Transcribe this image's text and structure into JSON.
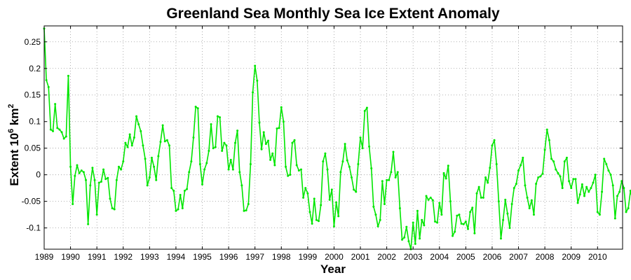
{
  "chart_data": {
    "type": "line",
    "title": "Greenland Sea Monthly Sea Ice Extent Anomaly",
    "xlabel": "Year",
    "ylabel_base": "Extent 10",
    "ylabel_exp1": "6",
    "ylabel_mid": " km",
    "ylabel_exp2": "2",
    "xlim": [
      1989,
      2010.95
    ],
    "ylim": [
      -0.14,
      0.28
    ],
    "grid": true,
    "line_color": "#00e600",
    "xticks": [
      1989,
      1990,
      1991,
      1992,
      1993,
      1994,
      1995,
      1996,
      1997,
      1998,
      1999,
      2000,
      2001,
      2002,
      2003,
      2004,
      2005,
      2006,
      2007,
      2008,
      2009,
      2010
    ],
    "yticks": [
      -0.1,
      -0.05,
      0,
      0.05,
      0.1,
      0.15,
      0.2,
      0.25
    ],
    "ytick_labels": [
      "-0.1",
      "-0.05",
      "0",
      "0.05",
      "0.1",
      "0.15",
      "0.2",
      "0.25"
    ],
    "series": [
      {
        "start_year": 1989,
        "step_months": 1,
        "values": [
          0.275,
          0.178,
          0.165,
          0.085,
          0.082,
          0.133,
          0.088,
          0.085,
          0.08,
          0.068,
          0.072,
          0.186,
          0.015,
          -0.055,
          -0.002,
          0.018,
          0.003,
          0.008,
          0.005,
          -0.01,
          -0.093,
          -0.02,
          0.013,
          -0.01,
          -0.075,
          -0.015,
          -0.013,
          0.01,
          -0.008,
          -0.006,
          -0.045,
          -0.063,
          -0.065,
          -0.01,
          0.015,
          0.01,
          0.025,
          0.06,
          0.052,
          0.076,
          0.055,
          0.07,
          0.11,
          0.095,
          0.082,
          0.055,
          0.03,
          -0.02,
          -0.005,
          0.032,
          0.015,
          -0.01,
          0.035,
          0.062,
          0.093,
          0.063,
          0.065,
          0.055,
          -0.025,
          -0.03,
          -0.068,
          -0.065,
          -0.038,
          -0.063,
          -0.03,
          -0.027,
          0.005,
          0.025,
          0.07,
          0.128,
          0.125,
          0.02,
          -0.018,
          0.01,
          0.022,
          0.045,
          0.095,
          0.05,
          0.052,
          0.11,
          0.108,
          0.045,
          0.06,
          0.055,
          0.01,
          0.028,
          0.01,
          0.06,
          0.083,
          0.005,
          -0.02,
          -0.068,
          -0.067,
          -0.055,
          0.02,
          0.155,
          0.205,
          0.177,
          0.098,
          0.048,
          0.08,
          0.058,
          0.064,
          0.028,
          0.04,
          0.018,
          0.087,
          0.088,
          0.127,
          0.1,
          0.015,
          -0.002,
          0.0,
          0.06,
          0.065,
          0.018,
          0.008,
          0.01,
          -0.043,
          -0.025,
          -0.035,
          -0.07,
          -0.092,
          -0.045,
          -0.085,
          -0.087,
          -0.057,
          0.025,
          0.04,
          0.01,
          -0.047,
          -0.028,
          -0.097,
          -0.052,
          -0.078,
          0.005,
          0.025,
          0.058,
          0.027,
          0.015,
          -0.005,
          -0.028,
          -0.032,
          0.02,
          0.07,
          0.05,
          0.12,
          0.126,
          0.053,
          0.012,
          -0.06,
          -0.075,
          -0.097,
          -0.085,
          -0.012,
          -0.055,
          -0.01,
          -0.01,
          0.005,
          0.043,
          -0.005,
          0.005,
          -0.063,
          -0.122,
          -0.118,
          -0.098,
          -0.125,
          -0.14,
          -0.09,
          -0.13,
          -0.068,
          -0.12,
          -0.085,
          -0.095,
          -0.04,
          -0.047,
          -0.043,
          -0.048,
          -0.088,
          -0.09,
          -0.053,
          -0.075,
          0.003,
          -0.007,
          0.017,
          -0.05,
          -0.115,
          -0.107,
          -0.077,
          -0.075,
          -0.092,
          -0.093,
          -0.088,
          -0.102,
          -0.07,
          -0.062,
          -0.11,
          -0.035,
          -0.023,
          -0.043,
          -0.043,
          -0.005,
          -0.015,
          0.013,
          0.055,
          0.065,
          0.02,
          -0.05,
          -0.12,
          -0.085,
          -0.047,
          -0.073,
          -0.1,
          -0.055,
          -0.025,
          -0.017,
          0.008,
          0.018,
          0.032,
          -0.02,
          -0.043,
          -0.063,
          -0.048,
          -0.075,
          -0.017,
          -0.005,
          -0.003,
          0.002,
          0.047,
          0.085,
          0.065,
          0.03,
          0.025,
          0.01,
          0.003,
          -0.003,
          -0.025,
          0.025,
          0.032,
          -0.012,
          -0.025,
          -0.008,
          -0.008,
          -0.053,
          -0.037,
          -0.018,
          -0.04,
          -0.023,
          -0.032,
          -0.025,
          -0.015,
          0.0,
          -0.07,
          -0.075,
          -0.032,
          0.03,
          0.02,
          0.008,
          0.0,
          -0.02,
          -0.082,
          -0.04,
          -0.032,
          -0.012,
          -0.025,
          -0.07,
          -0.063,
          -0.03,
          -0.048,
          -0.025,
          -0.012,
          -0.055,
          -0.01,
          -0.005
        ]
      }
    ]
  }
}
